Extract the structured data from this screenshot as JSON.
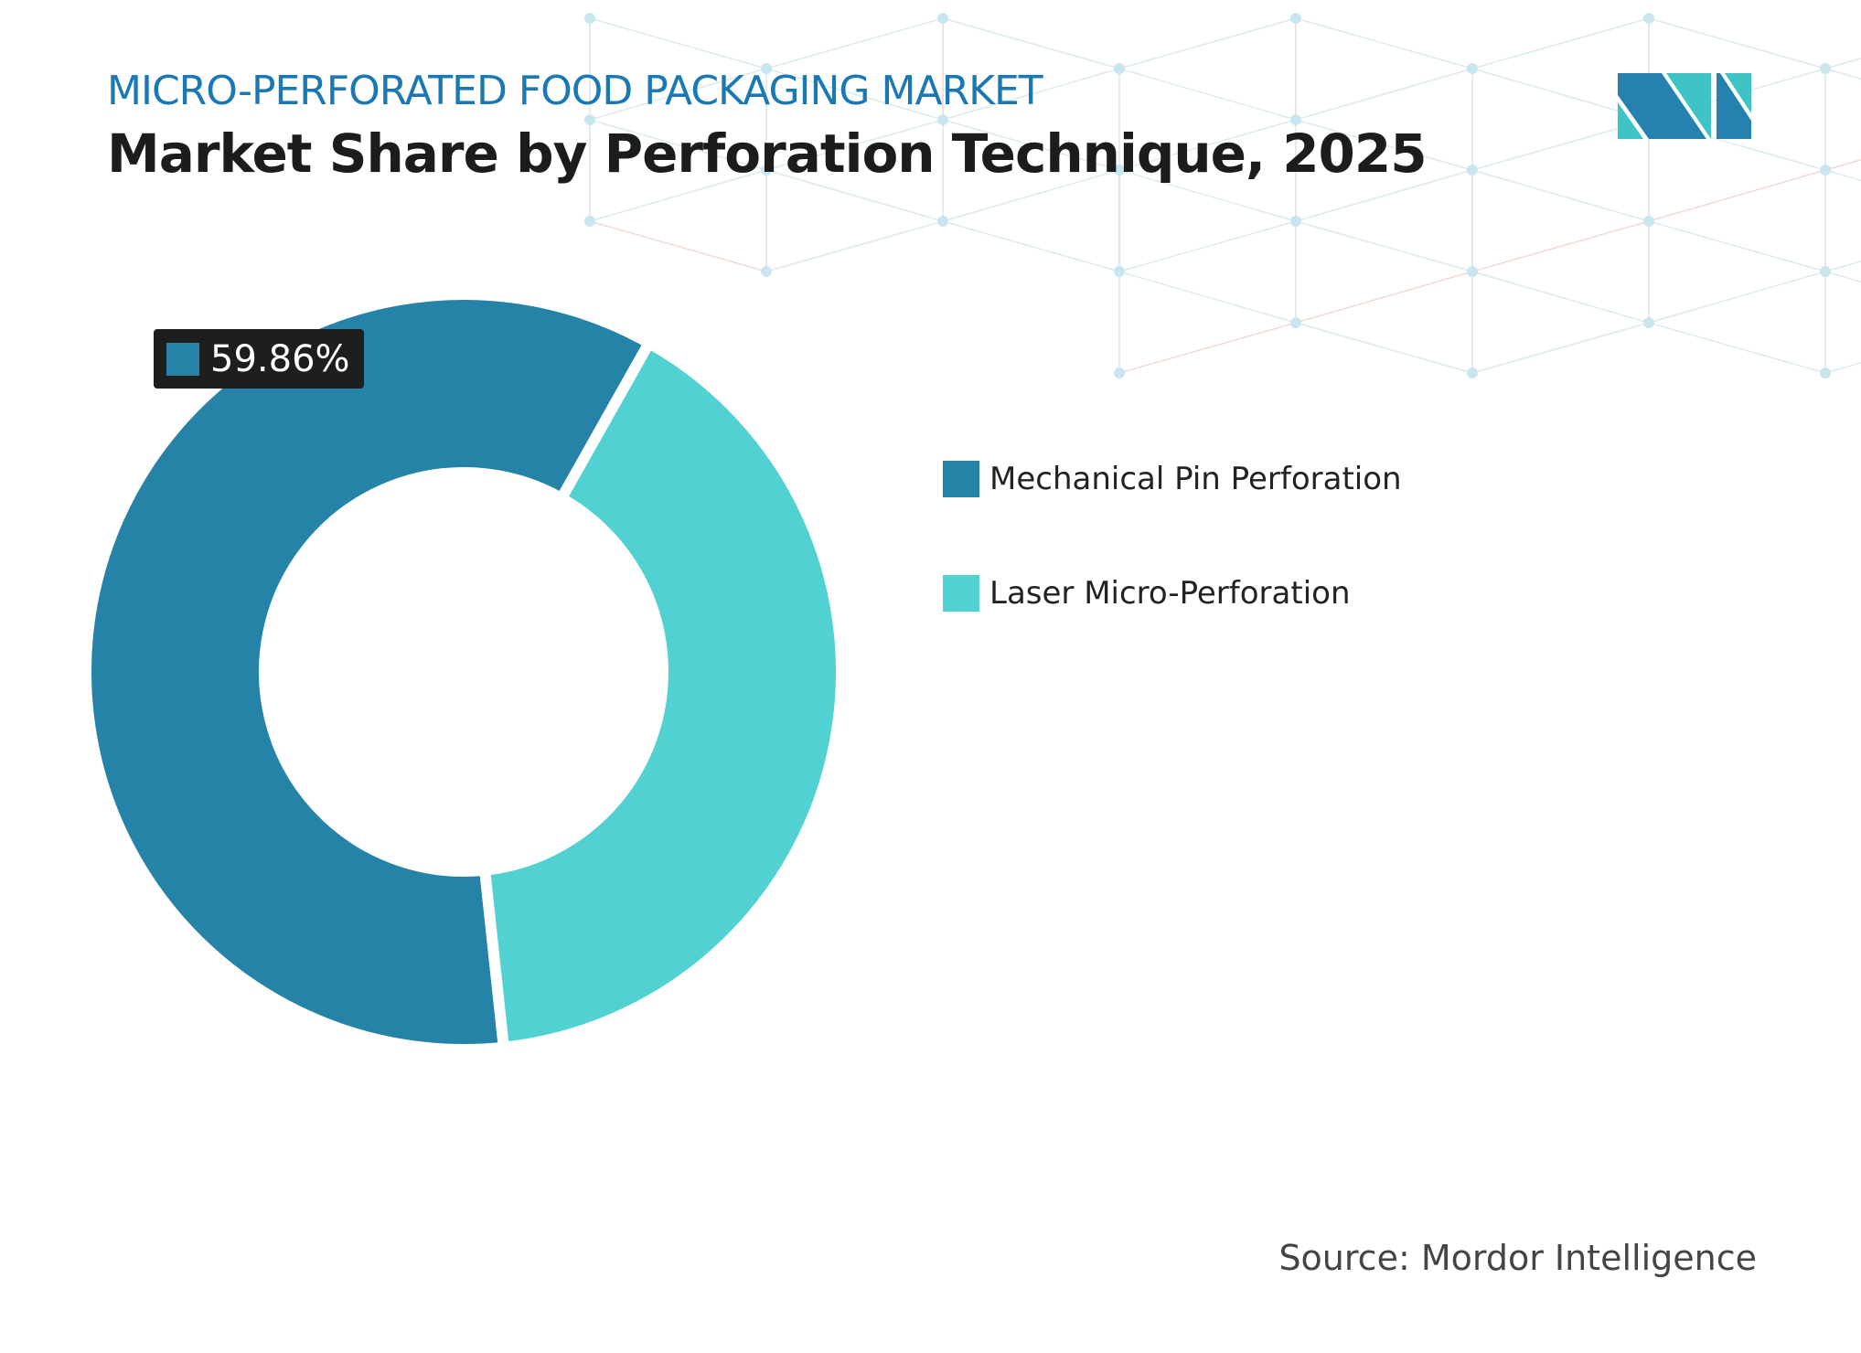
{
  "header": {
    "subtitle": "MICRO-PERFORATED FOOD PACKAGING MARKET",
    "title": "Market Share by Perforation Technique, 2025"
  },
  "logo": {
    "name": "mordor-intelligence-logo",
    "colors": [
      "#2481b0",
      "#3ec4c4"
    ]
  },
  "chart_data": {
    "type": "pie",
    "donut": true,
    "categories": [
      "Mechanical Pin Perforation",
      "Laser Micro-Perforation"
    ],
    "values": [
      59.86,
      40.14
    ],
    "colors": [
      "#2683a8",
      "#52d1d3"
    ],
    "data_labels": [
      "59.86%"
    ],
    "legend_position": "right"
  },
  "source": "Source: Mordor Intelligence"
}
